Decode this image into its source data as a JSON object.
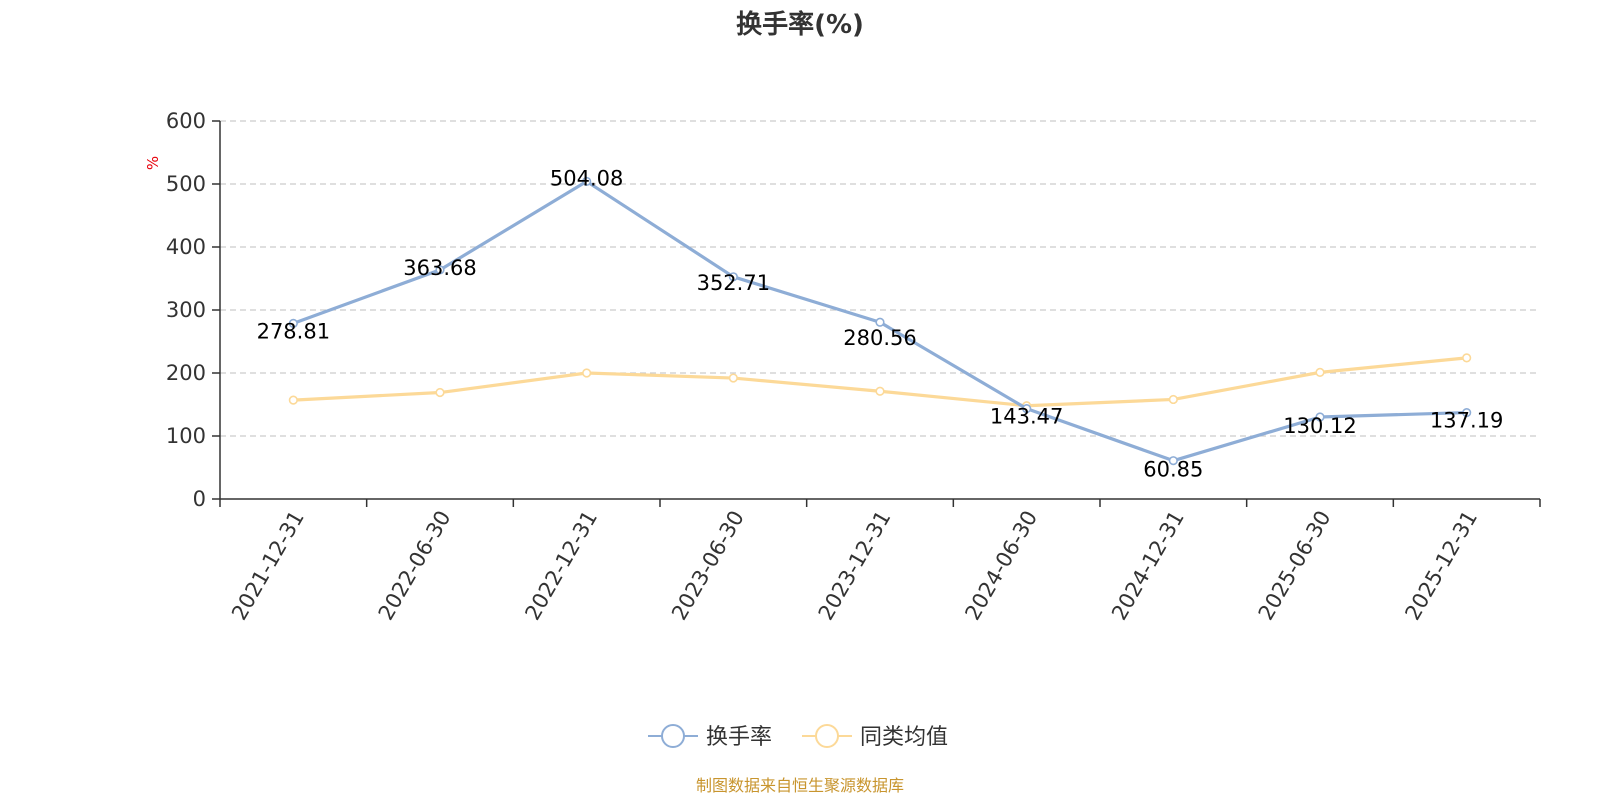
{
  "chart_data": {
    "type": "line",
    "title": "换手率(%)",
    "ylabel": "%",
    "xlabel": "",
    "ylim": [
      0,
      600
    ],
    "yticks": [
      "0",
      "100",
      "200",
      "300",
      "400",
      "500",
      "600"
    ],
    "categories": [
      "2021-12-31",
      "2022-06-30",
      "2022-12-31",
      "2023-06-30",
      "2023-12-31",
      "2024-06-30",
      "2024-12-31",
      "2025-06-30",
      "2025-12-31"
    ],
    "series": [
      {
        "name": "换手率",
        "color": "#8eadd6",
        "values": [
          278.81,
          363.68,
          504.08,
          352.71,
          280.56,
          143.47,
          60.85,
          130.12,
          137.19
        ],
        "labels": [
          "278.81",
          "363.68",
          "504.08",
          "352.71",
          "280.56",
          "143.47",
          "60.85",
          "130.12",
          "137.19"
        ]
      },
      {
        "name": "同类均值",
        "color": "#fcd998",
        "values": [
          157,
          169,
          200,
          192,
          171,
          148,
          158,
          201,
          224
        ]
      }
    ],
    "grid": true,
    "legend_position": "bottom-center",
    "unit_color": "#e8000b",
    "source_text": "制图数据来自恒生聚源数据库",
    "source_color": "#c8952e"
  }
}
